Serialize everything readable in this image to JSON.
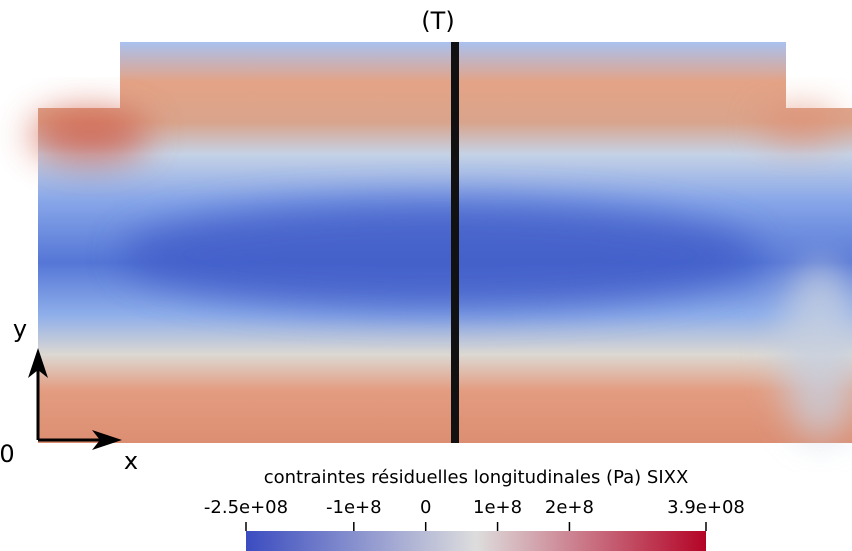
{
  "labels": {
    "line": "(T)",
    "y_axis": "y",
    "x_axis": "x",
    "origin": "0"
  },
  "colorbar": {
    "title": "contraintes résiduelles longitudinales (Pa) SIXX",
    "range": [
      -250000000,
      390000000
    ],
    "ticks": [
      {
        "value": -250000000,
        "label": "-2.5e+08"
      },
      {
        "value": -100000000,
        "label": "-1e+8"
      },
      0,
      {
        "value": 100000000,
        "label": "1e+8"
      },
      {
        "value": 200000000,
        "label": "2e+8"
      },
      {
        "value": 390000000,
        "label": "3.9e+08"
      }
    ],
    "colors": [
      "#3b4cc0",
      "#dddddd",
      "#b40426"
    ]
  }
}
